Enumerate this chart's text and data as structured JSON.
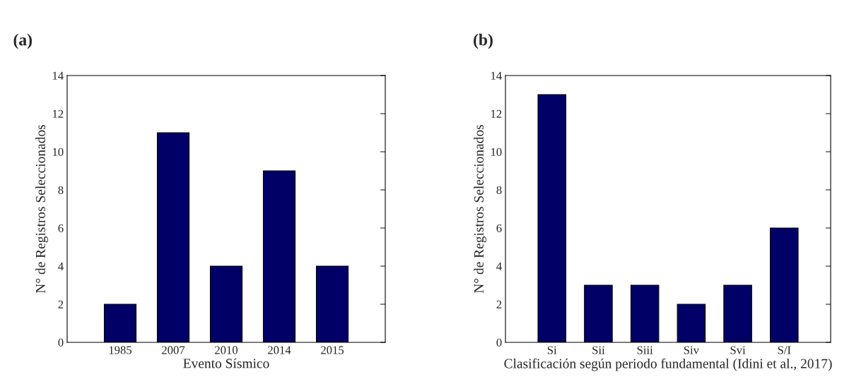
{
  "chart_data": [
    {
      "type": "bar",
      "title": "(a)",
      "xlabel": "Evento Sísmico",
      "ylabel": "N° de Registros Seleccionados",
      "categories": [
        "1985",
        "2007",
        "2010",
        "2014",
        "2015"
      ],
      "values": [
        2,
        11,
        4,
        9,
        4
      ],
      "color": "#000066",
      "ylim": [
        0,
        14
      ],
      "yticks": [
        0,
        2,
        4,
        6,
        8,
        10,
        12,
        14
      ],
      "grid": false,
      "legend": false
    },
    {
      "type": "bar",
      "title": "(b)",
      "xlabel": "Clasificación según periodo fundamental (Idini et al., 2017)",
      "ylabel": "N° de Registros Seleccionados",
      "categories": [
        "Si",
        "Sii",
        "Siii",
        "Siv",
        "Svi",
        "S/I"
      ],
      "values": [
        13,
        3,
        3,
        2,
        3,
        6
      ],
      "color": "#000066",
      "ylim": [
        0,
        14
      ],
      "yticks": [
        0,
        2,
        4,
        6,
        8,
        10,
        12,
        14
      ],
      "grid": false,
      "legend": false
    }
  ]
}
